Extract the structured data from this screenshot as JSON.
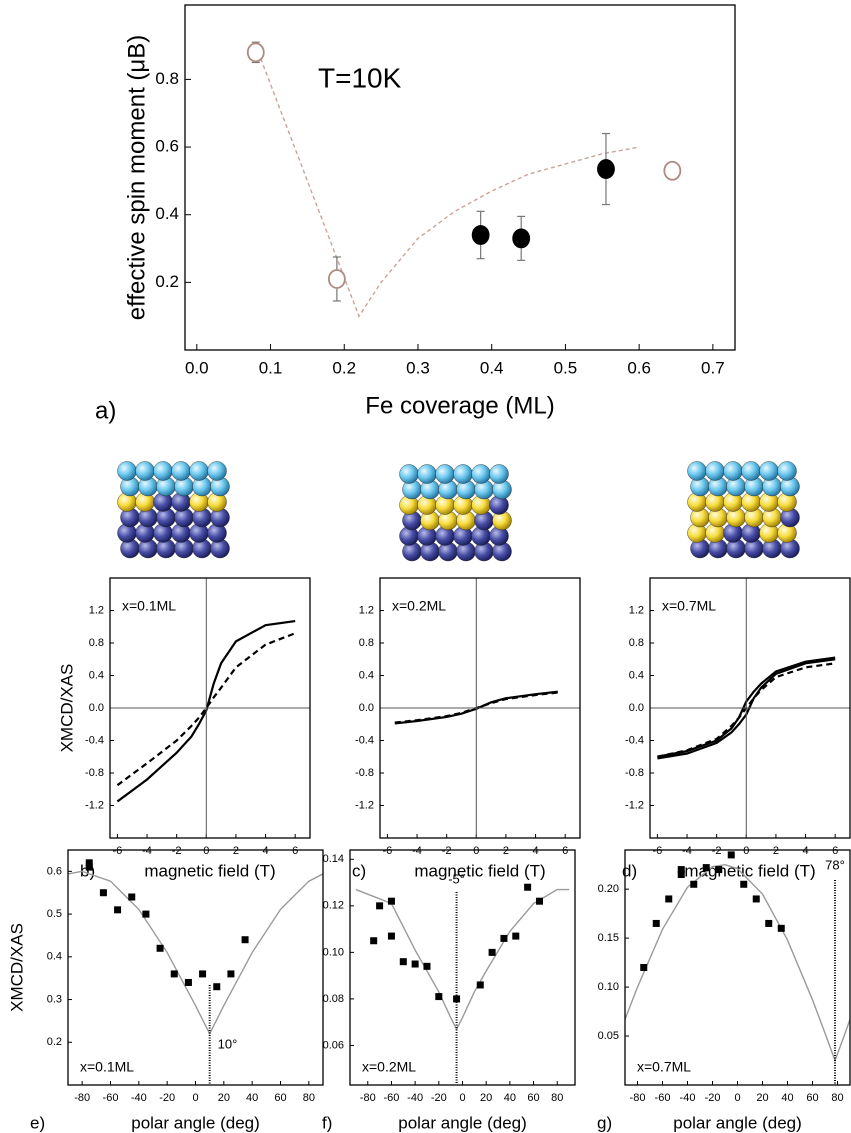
{
  "chart_data": [
    {
      "type": "scatter",
      "panel_label": "a)",
      "xlabel": "Fe coverage (ML)",
      "ylabel": "effective spin moment (μB)",
      "annotation": "T=10K",
      "xlim": [
        -0.016,
        0.73
      ],
      "ylim": [
        0,
        1.02
      ],
      "xticks": [
        {
          "value": 0,
          "label": "0.0"
        },
        0.1,
        0.2,
        0.3,
        0.4,
        0.5,
        0.6,
        0.7
      ],
      "yticks": [
        0.2,
        0.4,
        0.6,
        0.8
      ],
      "series": [
        {
          "style": "dashed",
          "color": "#c8a49a",
          "x": [
            0.08,
            0.15,
            0.22,
            0.25,
            0.3,
            0.35,
            0.4,
            0.45,
            0.5,
            0.55,
            0.6
          ],
          "values": [
            0.9,
            0.5,
            0.1,
            0.2,
            0.33,
            0.41,
            0.47,
            0.52,
            0.55,
            0.58,
            0.6
          ]
        },
        {
          "style": "open",
          "color": "#b08a80",
          "x": [
            0.08,
            0.19,
            0.645
          ],
          "values": [
            0.88,
            0.21,
            0.53
          ],
          "errors": [
            0.03,
            0.065,
            null
          ]
        },
        {
          "style": "filled",
          "color": "#000000",
          "x": [
            0.385,
            0.44,
            0.555
          ],
          "values": [
            0.34,
            0.33,
            0.535
          ],
          "errors": [
            0.07,
            0.065,
            0.105
          ]
        }
      ]
    },
    {
      "type": "line",
      "panel_label": "b)",
      "xlabel": "magnetic field (T)",
      "ylabel": "XMCD/XAS",
      "annotation": "x=0.1ML",
      "xlim": [
        -6.5,
        7
      ],
      "ylim": [
        -1.6,
        1.6
      ],
      "xticks": [
        -6,
        -4,
        -2,
        0,
        2,
        4,
        6
      ],
      "yticks": [
        -1.2,
        -0.8,
        -0.4,
        {
          "value": 0,
          "label": "0.0"
        },
        0.4,
        0.8,
        1.2
      ],
      "x": [
        -6,
        -4,
        -2,
        -1,
        -0.5,
        0,
        0.5,
        1,
        2,
        4,
        6
      ],
      "series": [
        {
          "style": "solid",
          "color": "#000000",
          "values": [
            -1.15,
            -0.88,
            -0.55,
            -0.35,
            -0.2,
            -0.03,
            0.3,
            0.55,
            0.82,
            1.02,
            1.07
          ]
        },
        {
          "style": "dashed",
          "color": "#000000",
          "values": [
            -0.95,
            -0.68,
            -0.4,
            -0.22,
            -0.12,
            0,
            0.13,
            0.25,
            0.5,
            0.78,
            0.92
          ]
        }
      ]
    },
    {
      "type": "line",
      "panel_label": "c)",
      "xlabel": "magnetic field (T)",
      "annotation": "x=0.2ML",
      "xlim": [
        -6.5,
        7
      ],
      "ylim": [
        -1.6,
        1.6
      ],
      "xticks": [
        -6,
        -4,
        -2,
        0,
        2,
        4,
        6
      ],
      "yticks": [
        -1.2,
        -0.8,
        -0.4,
        {
          "value": 0,
          "label": "0.0"
        },
        0.4,
        0.8,
        1.2
      ],
      "x": [
        -5.5,
        -4,
        -2,
        -1,
        -0.5,
        0,
        0.5,
        1,
        2,
        4,
        5.5
      ],
      "series": [
        {
          "style": "solid",
          "color": "#000000",
          "values": [
            -0.19,
            -0.16,
            -0.11,
            -0.07,
            -0.04,
            -0.01,
            0.03,
            0.07,
            0.12,
            0.17,
            0.2
          ]
        },
        {
          "style": "dashed",
          "color": "#000000",
          "values": [
            -0.18,
            -0.15,
            -0.1,
            -0.06,
            -0.03,
            0,
            0.03,
            0.06,
            0.11,
            0.16,
            0.19
          ]
        }
      ]
    },
    {
      "type": "line",
      "panel_label": "d)",
      "xlabel": "magnetic field (T)",
      "annotation": "x=0.7ML",
      "xlim": [
        -6.5,
        7
      ],
      "ylim": [
        -1.6,
        1.6
      ],
      "xticks": [
        -6,
        -4,
        -2,
        0,
        2,
        4,
        6
      ],
      "yticks": [
        -1.2,
        -0.8,
        -0.4,
        {
          "value": 0,
          "label": "0.0"
        },
        0.4,
        0.8,
        1.2
      ],
      "x": [
        -6,
        -4,
        -2,
        -1,
        -0.5,
        0,
        0.5,
        1,
        2,
        4,
        6
      ],
      "series": [
        {
          "style": "solid",
          "color": "#000000",
          "values": [
            -0.62,
            -0.56,
            -0.43,
            -0.3,
            -0.2,
            -0.08,
            0.12,
            0.25,
            0.42,
            0.55,
            0.6
          ]
        },
        {
          "style": "solid",
          "color": "#000000",
          "values": [
            -0.6,
            -0.53,
            -0.4,
            -0.25,
            -0.12,
            0.08,
            0.2,
            0.3,
            0.45,
            0.57,
            0.62
          ]
        },
        {
          "style": "dashed",
          "color": "#000000",
          "values": [
            -0.6,
            -0.52,
            -0.38,
            -0.22,
            -0.12,
            0,
            0.12,
            0.22,
            0.38,
            0.5,
            0.55
          ]
        }
      ]
    },
    {
      "type": "scatter",
      "panel_label": "e)",
      "xlabel": "polar angle (deg)",
      "ylabel": "XMCD/XAS",
      "annotation": "x=0.1ML",
      "marker_line": 10,
      "marker_label": "10°",
      "xlim": [
        -90,
        90
      ],
      "ylim": [
        0.1,
        0.65
      ],
      "xticks": [
        -80,
        -60,
        -40,
        -20,
        0,
        20,
        40,
        60,
        80
      ],
      "yticks": [
        0.2,
        0.3,
        0.4,
        0.5,
        0.6
      ],
      "series": [
        {
          "style": "solid",
          "color": "#9a9a9a",
          "x": [
            -90,
            -80,
            -60,
            -40,
            -20,
            0,
            5,
            10,
            15,
            20,
            40,
            60,
            80,
            90
          ],
          "values": [
            0.594,
            0.6,
            0.577,
            0.511,
            0.41,
            0.286,
            0.253,
            0.22,
            0.253,
            0.286,
            0.41,
            0.511,
            0.577,
            0.594
          ]
        },
        {
          "style": "square",
          "color": "#000000",
          "x": [
            -75,
            -75,
            -65,
            -55,
            -45,
            -35,
            -25,
            -15,
            -5,
            5,
            15,
            25,
            35
          ],
          "values": [
            0.62,
            0.61,
            0.55,
            0.51,
            0.54,
            0.5,
            0.42,
            0.36,
            0.34,
            0.36,
            0.33,
            0.36,
            0.44
          ]
        }
      ]
    },
    {
      "type": "scatter",
      "panel_label": "f)",
      "xlabel": "polar angle (deg)",
      "annotation": "x=0.2ML",
      "marker_line": -5,
      "marker_label": "-5°",
      "xlim": [
        -95,
        95
      ],
      "ylim": [
        0.043,
        0.144
      ],
      "xticks": [
        -80,
        -60,
        -40,
        -20,
        0,
        20,
        40,
        60,
        80
      ],
      "yticks": [
        0.06,
        0.08,
        {
          "value": 0.1,
          "label": "0.10"
        },
        0.12,
        0.14
      ],
      "series": [
        {
          "style": "solid",
          "color": "#9a9a9a",
          "x": [
            -90,
            -80,
            -60,
            -40,
            -20,
            -10,
            -5,
            0,
            10,
            20,
            40,
            60,
            80,
            90
          ],
          "values": [
            0.127,
            0.125,
            0.121,
            0.101,
            0.083,
            0.072,
            0.067,
            0.072,
            0.083,
            0.092,
            0.109,
            0.121,
            0.127,
            0.127
          ]
        },
        {
          "style": "square",
          "color": "#000000",
          "x": [
            -75,
            -70,
            -60,
            -60,
            -50,
            -40,
            -30,
            -20,
            -5,
            15,
            25,
            35,
            45,
            55,
            65
          ],
          "values": [
            0.105,
            0.12,
            0.122,
            0.107,
            0.096,
            0.095,
            0.094,
            0.081,
            0.08,
            0.086,
            0.1,
            0.106,
            0.107,
            0.128,
            0.122
          ]
        }
      ]
    },
    {
      "type": "scatter",
      "panel_label": "g)",
      "xlabel": "polar angle (deg)",
      "annotation": "x=0.7ML",
      "marker_line": 78,
      "marker_label": "78°",
      "xlim": [
        -90,
        90
      ],
      "ylim": [
        0,
        0.24
      ],
      "xticks": [
        -80,
        -60,
        -40,
        -20,
        0,
        20,
        40,
        60,
        80
      ],
      "yticks": [
        0.05,
        {
          "value": 0.1,
          "label": "0.10"
        },
        0.15,
        {
          "value": 0.2,
          "label": "0.20"
        }
      ],
      "series": [
        {
          "style": "solid",
          "color": "#9a9a9a",
          "x": [
            -90,
            -80,
            -60,
            -40,
            -20,
            -10,
            0,
            20,
            40,
            60,
            70,
            78,
            85,
            90
          ],
          "values": [
            0.067,
            0.1,
            0.159,
            0.202,
            0.223,
            0.225,
            0.221,
            0.195,
            0.148,
            0.087,
            0.053,
            0.025,
            0.049,
            0.067
          ]
        },
        {
          "style": "square",
          "color": "#000000",
          "x": [
            -75,
            -65,
            -55,
            -45,
            -45,
            -35,
            -25,
            -15,
            -5,
            5,
            15,
            25,
            35
          ],
          "values": [
            0.12,
            0.165,
            0.19,
            0.215,
            0.22,
            0.205,
            0.222,
            0.22,
            0.235,
            0.205,
            0.19,
            0.165,
            0.16
          ]
        }
      ]
    }
  ]
}
